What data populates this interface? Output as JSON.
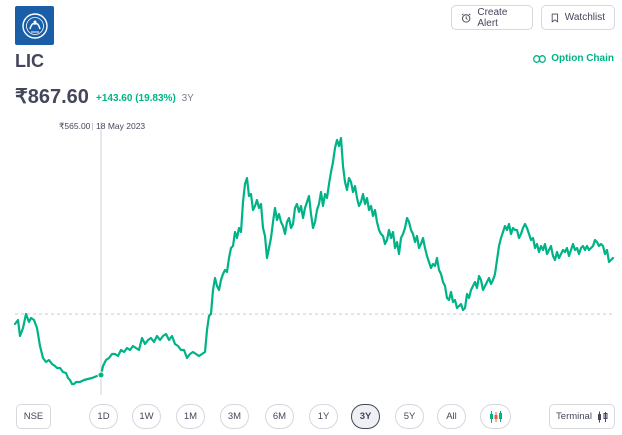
{
  "header": {
    "logo_icon": "lic-logo-icon",
    "create_alert_label": "Create Alert",
    "watchlist_label": "Watchlist",
    "stock_name": "LIC",
    "option_chain_label": "Option Chain",
    "price": "₹867.60",
    "change": "+143.60 (19.83%)",
    "change_period": "3Y"
  },
  "tooltip": {
    "price": "₹565.00",
    "date": "18 May 2023"
  },
  "chart_data": {
    "type": "line",
    "period": "3Y",
    "line_color": "#00b386",
    "baseline_dashed": true,
    "hover_point": {
      "date": "18 May 2023",
      "value": 565.0
    },
    "y_approx": [
      630,
      624,
      640,
      634,
      610,
      600,
      585,
      582,
      578,
      572,
      560,
      556,
      555,
      558,
      560,
      565,
      568,
      585,
      592,
      590,
      598,
      595,
      600,
      606,
      602,
      610,
      606,
      600,
      596,
      590,
      612,
      700,
      730,
      760,
      800,
      870,
      880,
      910,
      905,
      912,
      900,
      890,
      885,
      878,
      890,
      900,
      915,
      930,
      960,
      1020,
      1060,
      1040,
      1000,
      990,
      960,
      950,
      930,
      920,
      910,
      900,
      895,
      888,
      880,
      870,
      860,
      855,
      858,
      870,
      880,
      890,
      880,
      870,
      860,
      855,
      870,
      920,
      930,
      935,
      930,
      920,
      910,
      920,
      915,
      925,
      920,
      918,
      900,
      905
    ]
  },
  "controls": {
    "exchange": "NSE",
    "ranges": [
      "1D",
      "1W",
      "1M",
      "3M",
      "6M",
      "1Y",
      "3Y",
      "5Y",
      "All"
    ],
    "active_range": "3Y",
    "candle_icon": "candlestick-icon",
    "terminal_label": "Terminal"
  }
}
